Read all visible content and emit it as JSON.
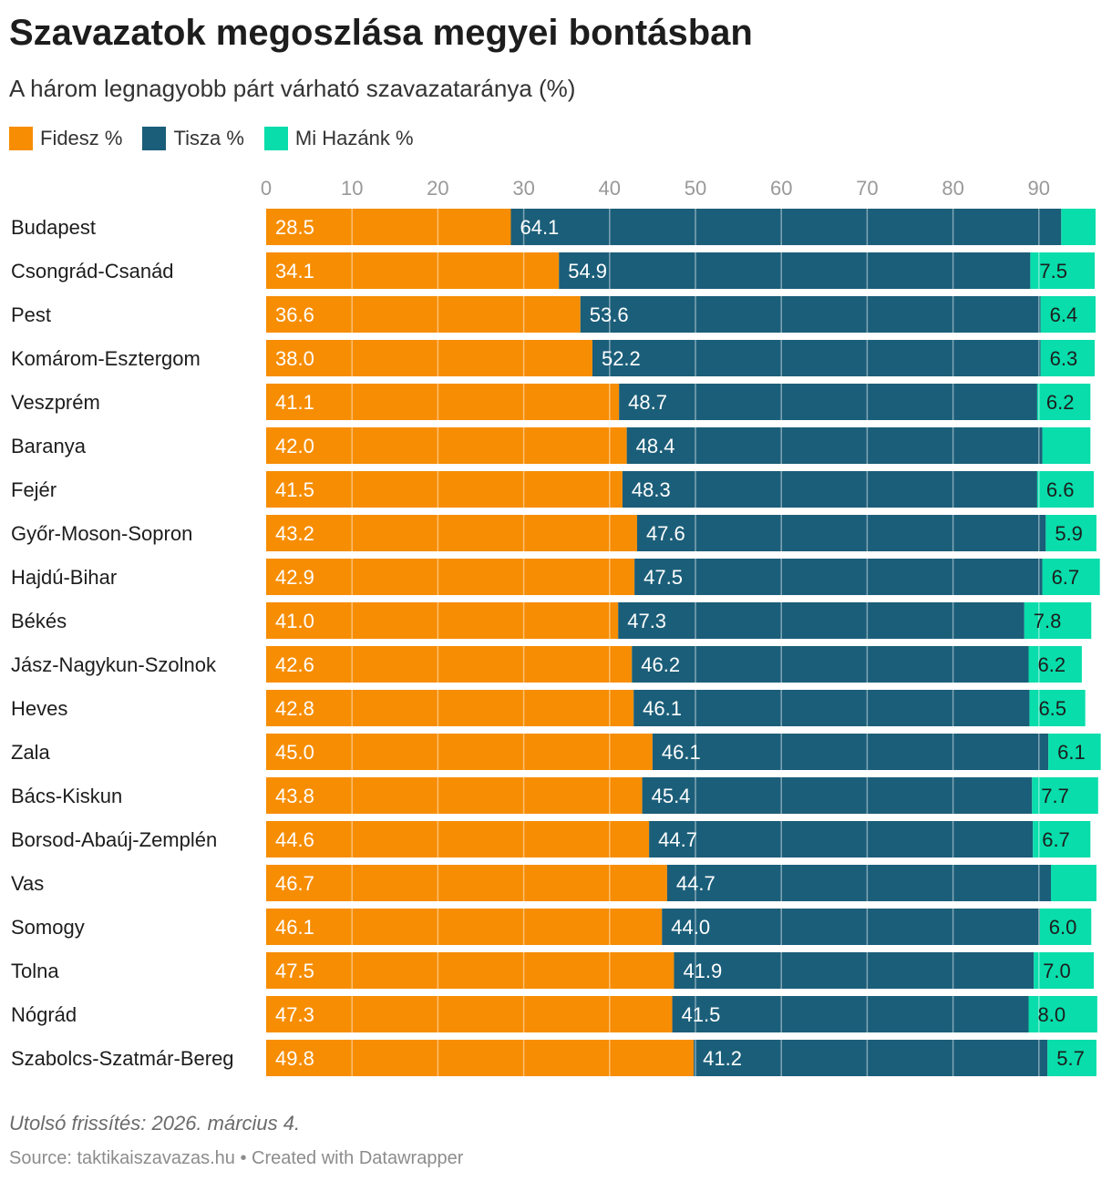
{
  "header": {
    "title": "Szavazatok megoszlása megyei bontásban",
    "subtitle": "A három legnagyobb párt várható szavazataránya (%)"
  },
  "footer": {
    "notes": "Utolsó frissítés: 2026. március 4.",
    "source": "Source: taktikaiszavazas.hu • Created with Datawrapper"
  },
  "colors": {
    "fidesz": "#f78d02",
    "tisza": "#1b5e79",
    "mihazank": "#08ddab",
    "grid": "#d9d9d9",
    "tick": "#999999"
  },
  "chart_data": {
    "type": "bar",
    "orientation": "horizontal",
    "stacked": true,
    "title": "Szavazatok megoszlása megyei bontásban",
    "subtitle": "A három legnagyobb párt várható szavazataránya (%)",
    "xlim": [
      0,
      97
    ],
    "xticks": [
      0,
      10,
      20,
      30,
      40,
      50,
      60,
      70,
      80,
      90
    ],
    "grid": true,
    "legend_position": "top-left",
    "categories": [
      "Budapest",
      "Csongrád-Csanád",
      "Pest",
      "Komárom-Esztergom",
      "Veszprém",
      "Baranya",
      "Fejér",
      "Győr-Moson-Sopron",
      "Hajdú-Bihar",
      "Békés",
      "Jász-Nagykun-Szolnok",
      "Heves",
      "Zala",
      "Bács-Kiskun",
      "Borsod-Abaúj-Zemplén",
      "Vas",
      "Somogy",
      "Tolna",
      "Nógrád",
      "Szabolcs-Szatmár-Bereg"
    ],
    "series": [
      {
        "name": "Fidesz %",
        "values": [
          28.5,
          34.1,
          36.6,
          38.0,
          41.1,
          42.0,
          41.5,
          43.2,
          42.9,
          41.0,
          42.6,
          42.8,
          45.0,
          43.8,
          44.6,
          46.7,
          46.1,
          47.5,
          47.3,
          49.8
        ]
      },
      {
        "name": "Tisza %",
        "values": [
          64.1,
          54.9,
          53.6,
          52.2,
          48.7,
          48.4,
          48.3,
          47.6,
          47.5,
          47.3,
          46.2,
          46.1,
          46.1,
          45.4,
          44.7,
          44.7,
          44.0,
          41.9,
          41.5,
          41.2
        ]
      },
      {
        "name": "Mi Hazánk %",
        "values": [
          4.0,
          7.5,
          6.4,
          6.3,
          6.2,
          5.6,
          6.6,
          5.9,
          6.7,
          7.8,
          6.2,
          6.5,
          6.1,
          7.7,
          6.7,
          5.3,
          6.0,
          7.0,
          8.0,
          5.7
        ]
      }
    ],
    "labels": {
      "Fidesz %": [
        "28.5",
        "34.1",
        "36.6",
        "38.0",
        "41.1",
        "42.0",
        "41.5",
        "43.2",
        "42.9",
        "41.0",
        "42.6",
        "42.8",
        "45.0",
        "43.8",
        "44.6",
        "46.7",
        "46.1",
        "47.5",
        "47.3",
        "49.8"
      ],
      "Tisza %": [
        "64.1",
        "54.9",
        "53.6",
        "52.2",
        "48.7",
        "48.4",
        "48.3",
        "47.6",
        "47.5",
        "47.3",
        "46.2",
        "46.1",
        "46.1",
        "45.4",
        "44.7",
        "44.7",
        "44.0",
        "41.9",
        "41.5",
        "41.2"
      ],
      "Mi Hazánk %": [
        "",
        "7.5",
        "6.4",
        "6.3",
        "6.2",
        "",
        "6.6",
        "5.9",
        "6.7",
        "7.8",
        "6.2",
        "6.5",
        "6.1",
        "7.7",
        "6.7",
        "",
        "6.0",
        "7.0",
        "8.0",
        "5.7"
      ]
    }
  }
}
